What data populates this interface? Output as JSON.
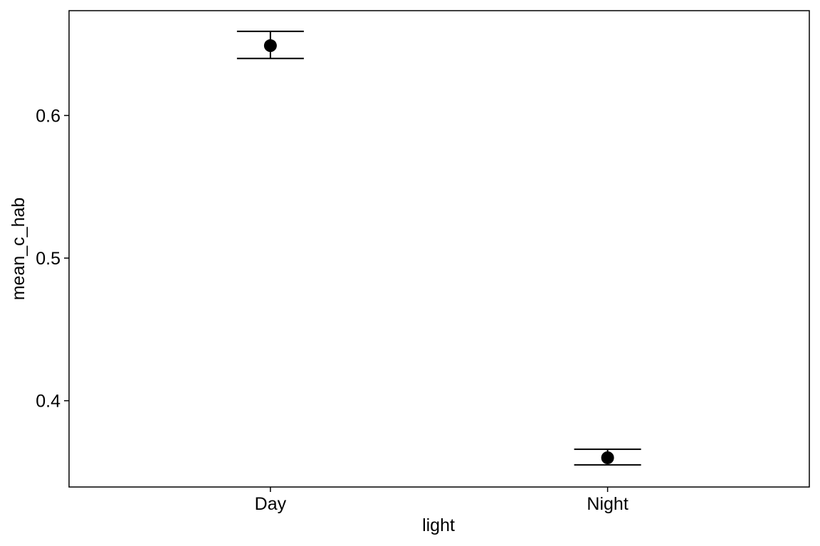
{
  "chart_data": {
    "type": "scatter",
    "title": "",
    "xlabel": "light",
    "ylabel": "mean_c_hab",
    "categories": [
      "Day",
      "Night"
    ],
    "points": [
      {
        "category": "Day",
        "y": 0.649,
        "ymin": 0.64,
        "ymax": 0.659
      },
      {
        "category": "Night",
        "y": 0.36,
        "ymin": 0.355,
        "ymax": 0.366
      }
    ],
    "ylim": [
      0.3395,
      0.6735
    ],
    "yticks": [
      0.4,
      0.5,
      0.6
    ],
    "ytick_labels": [
      "0.4",
      "0.5",
      "0.6"
    ],
    "grid": false,
    "legend": "none",
    "colors": {
      "point": "#000000",
      "errorbar": "#000000",
      "panel_border": "#000000",
      "background": "#ffffff"
    }
  }
}
